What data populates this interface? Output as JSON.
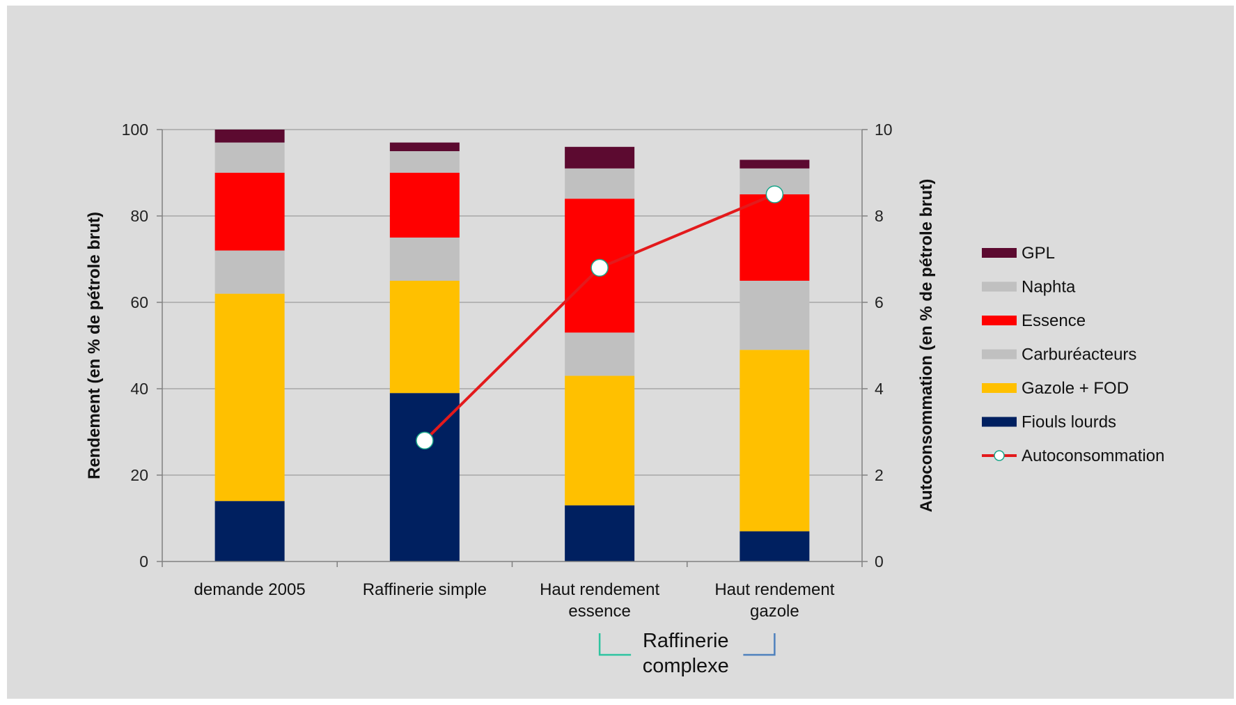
{
  "chart_data": {
    "type": "bar",
    "stacked": true,
    "categories": [
      [
        "demande 2005"
      ],
      [
        "Raffinerie simple"
      ],
      [
        "Haut rendement",
        "essence"
      ],
      [
        "Haut rendement",
        "gazole"
      ]
    ],
    "series": [
      {
        "name": "Fiouls lourds",
        "color": "#002060",
        "values": [
          14,
          39,
          13,
          7
        ]
      },
      {
        "name": "Gazole + FOD",
        "color": "#FFC000",
        "values": [
          48,
          26,
          30,
          42
        ]
      },
      {
        "name": "Carburéacteurs",
        "color": "#C0C0C0",
        "values": [
          10,
          10,
          10,
          16
        ]
      },
      {
        "name": "Essence",
        "color": "#FF0000",
        "values": [
          18,
          15,
          31,
          20
        ]
      },
      {
        "name": "Naphta",
        "color": "#C0C0C0",
        "values": [
          7,
          5,
          7,
          6
        ]
      },
      {
        "name": "GPL",
        "color": "#5C0A30",
        "values": [
          3,
          2,
          5,
          2
        ]
      }
    ],
    "line_series": {
      "name": "Autoconsommation",
      "color": "#E31A1C",
      "axis": "right",
      "values": [
        null,
        2.8,
        6.8,
        8.5
      ]
    },
    "ylabel": "Rendement (en % de pétrole brut)",
    "y2label": "Autoconsommation (en % de pétrole brut)",
    "ylim": [
      0,
      100
    ],
    "yticks": [
      "0",
      "20",
      "40",
      "60",
      "80",
      "100"
    ],
    "y2lim": [
      0,
      10
    ],
    "y2ticks": [
      "0",
      "2",
      "4",
      "6",
      "8",
      "10"
    ],
    "grid": true,
    "legend_position": "right",
    "legend_order": [
      "GPL",
      "Naphta",
      "Essence",
      "Carburéacteurs",
      "Gazole + FOD",
      "Fiouls lourds",
      "Autoconsommation"
    ],
    "group_annotation": {
      "lines": [
        "Raffinerie",
        "complexe"
      ],
      "spans_categories": [
        2,
        3
      ]
    },
    "colors": {
      "background": "#DCDCDC",
      "grid": "#A6A6A6",
      "bracket_left": "#2EC4A0",
      "bracket_right": "#4F81BD"
    }
  }
}
